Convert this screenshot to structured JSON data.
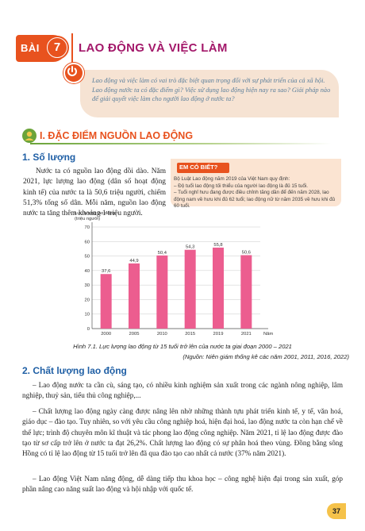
{
  "lesson": {
    "word": "BÀI",
    "number": "7",
    "title": "LAO ĐỘNG VÀ VIỆC LÀM"
  },
  "intro": {
    "text": "Lao động và việc làm có vai trò đặc biệt quan trọng đối với sự phát triển của cả xã hội. Lao động nước ta có đặc điểm gì? Việc sử dụng lao động hiện nay ra sao? Giải pháp nào để giải quyết việc làm cho người lao động ở nước ta?"
  },
  "section1": {
    "title": "I. ĐẶC ĐIỂM NGUỒN LAO ĐỘNG",
    "sub1": "1. Số lượng",
    "sub1_text": "Nước ta có nguồn lao động dồi dào. Năm 2021, lực lượng lao động (dân số hoạt động kinh tế) của nước ta là 50,6 triệu người, chiếm 51,3% tổng số dân. Mỗi năm, nguồn lao động nước ta tăng thêm khoảng 1 triệu người."
  },
  "did_you_know": {
    "badge": "EM CÓ BIẾT?",
    "lines": [
      "Bộ Luật Lao động năm 2019 của Việt Nam quy định:",
      "– Độ tuổi lao động tối thiểu của người lao động là đủ 15 tuổi.",
      "– Tuổi nghỉ hưu đang được điều chỉnh tăng dần để đến năm 2028, lao động nam về hưu khi đủ 62 tuổi; lao động nữ từ năm 2035 về hưu khi đủ 60 tuổi."
    ]
  },
  "chart_data": {
    "type": "bar",
    "title": "",
    "ylabel": "Lực lượng lao động (triệu người)",
    "xlabel": "Năm",
    "categories": [
      "2000",
      "2005",
      "2010",
      "2015",
      "2019",
      "2021"
    ],
    "values": [
      37.6,
      44.9,
      50.4,
      54.3,
      55.8,
      50.6
    ],
    "value_labels": [
      "37,6",
      "44,9",
      "50,4",
      "54,3",
      "55,8",
      "50,6"
    ],
    "yticks": [
      0,
      10,
      20,
      30,
      40,
      50,
      60,
      70
    ],
    "ylim": [
      0,
      70
    ],
    "bar_color": "#ec5d8f",
    "grid": true
  },
  "chart_caption": "Hình 7.1. Lực lượng lao động từ 15 tuổi trở lên của nước ta giai đoạn 2000 – 2021",
  "chart_source": "(Nguồn: Niên giám thống kê các năm 2001, 2011, 2016, 2022)",
  "section2": {
    "title": "2. Chất lượng lao động",
    "p1": "– Lao động nước ta cần cù, sáng tạo, có nhiều kinh nghiệm sản xuất trong các ngành nông nghiệp, lâm nghiệp, thuỷ sản, tiểu thủ công nghiệp,...",
    "p2": "– Chất lượng lao động ngày càng được nâng lên nhờ những thành tựu phát triển kinh tế, y tế, văn hoá, giáo dục – đào tạo. Tuy nhiên, so với yêu cầu công nghiệp hoá, hiện đại hoá, lao động nước ta còn hạn chế về thể lực; trình độ chuyên môn kĩ thuật và tác phong lao động công nghiệp. Năm 2021, tỉ lệ lao động được đào tạo từ sơ cấp trở lên ở nước ta đạt 26,2%. Chất lượng lao động có sự phân hoá theo vùng. Đồng bằng sông Hồng có tỉ lệ lao động từ 15 tuổi trở lên đã qua đào tạo cao nhất cả nước (37% năm 2021).",
    "p3": "– Lao động Việt Nam năng động, dễ dàng tiếp thu khoa học – công nghệ hiện đại trong sản xuất, góp phần nâng cao năng suất lao động và hội nhập với quốc tế."
  },
  "page_number": "37",
  "colors": {
    "accent": "#e8521e",
    "title": "#a3186a",
    "heading": "#1f5fa5",
    "intro_text": "#5a7e9b",
    "bar": "#ec5d8f"
  }
}
